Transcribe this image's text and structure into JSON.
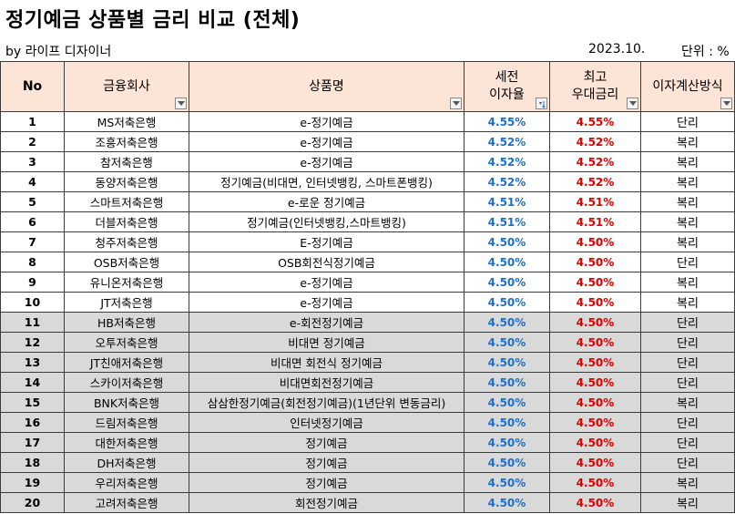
{
  "title": "정기예금 상품별 금리 비교 (전체)",
  "subtitle": {
    "author": "by 라이프 디자이너",
    "date": "2023.10.",
    "unit": "단위 : %"
  },
  "headers": {
    "no": "No",
    "company": "금융회사",
    "product": "상품명",
    "rate_line1": "세전",
    "rate_line2": "이자율",
    "max_line1": "최고",
    "max_line2": "우대금리",
    "calc": "이자계산방식"
  },
  "colors": {
    "header_bg": "#fce4d6",
    "rate_blue": "#1f6fc6",
    "max_red": "#e00000",
    "gray_row": "#d9d9d9"
  },
  "rows": [
    {
      "no": "1",
      "company": "MS저축은행",
      "product": "e-정기예금",
      "rate": "4.55%",
      "max": "4.55%",
      "calc": "단리",
      "gray": false
    },
    {
      "no": "2",
      "company": "조흥저축은행",
      "product": "e-정기예금",
      "rate": "4.52%",
      "max": "4.52%",
      "calc": "복리",
      "gray": false
    },
    {
      "no": "3",
      "company": "참저축은행",
      "product": "e-정기예금",
      "rate": "4.52%",
      "max": "4.52%",
      "calc": "복리",
      "gray": false
    },
    {
      "no": "4",
      "company": "동양저축은행",
      "product": "정기예금(비대면, 인터넷뱅킹, 스마트폰뱅킹)",
      "rate": "4.52%",
      "max": "4.52%",
      "calc": "복리",
      "gray": false
    },
    {
      "no": "5",
      "company": "스마트저축은행",
      "product": "e-로운 정기예금",
      "rate": "4.51%",
      "max": "4.51%",
      "calc": "복리",
      "gray": false
    },
    {
      "no": "6",
      "company": "더블저축은행",
      "product": "정기예금(인터넷뱅킹,스마트뱅킹)",
      "rate": "4.51%",
      "max": "4.51%",
      "calc": "복리",
      "gray": false
    },
    {
      "no": "7",
      "company": "청주저축은행",
      "product": "E-정기예금",
      "rate": "4.50%",
      "max": "4.50%",
      "calc": "복리",
      "gray": false
    },
    {
      "no": "8",
      "company": "OSB저축은행",
      "product": "OSB회전식정기예금",
      "rate": "4.50%",
      "max": "4.50%",
      "calc": "단리",
      "gray": false
    },
    {
      "no": "9",
      "company": "유니온저축은행",
      "product": "e-정기예금",
      "rate": "4.50%",
      "max": "4.50%",
      "calc": "복리",
      "gray": false
    },
    {
      "no": "10",
      "company": "JT저축은행",
      "product": "e-정기예금",
      "rate": "4.50%",
      "max": "4.50%",
      "calc": "복리",
      "gray": false
    },
    {
      "no": "11",
      "company": "HB저축은행",
      "product": "e-회전정기예금",
      "rate": "4.50%",
      "max": "4.50%",
      "calc": "단리",
      "gray": true
    },
    {
      "no": "12",
      "company": "오투저축은행",
      "product": "비대면 정기예금",
      "rate": "4.50%",
      "max": "4.50%",
      "calc": "단리",
      "gray": true
    },
    {
      "no": "13",
      "company": "JT친애저축은행",
      "product": "비대면 회전식 정기예금",
      "rate": "4.50%",
      "max": "4.50%",
      "calc": "단리",
      "gray": true
    },
    {
      "no": "14",
      "company": "스카이저축은행",
      "product": "비대면회전정기예금",
      "rate": "4.50%",
      "max": "4.50%",
      "calc": "단리",
      "gray": true
    },
    {
      "no": "15",
      "company": "BNK저축은행",
      "product": "삼삼한정기예금(회전정기예금)(1년단위 변동금리)",
      "rate": "4.50%",
      "max": "4.50%",
      "calc": "복리",
      "gray": true
    },
    {
      "no": "16",
      "company": "드림저축은행",
      "product": "인터넷정기예금",
      "rate": "4.50%",
      "max": "4.50%",
      "calc": "단리",
      "gray": true
    },
    {
      "no": "17",
      "company": "대한저축은행",
      "product": "정기예금",
      "rate": "4.50%",
      "max": "4.50%",
      "calc": "단리",
      "gray": true
    },
    {
      "no": "18",
      "company": "DH저축은행",
      "product": "정기예금",
      "rate": "4.50%",
      "max": "4.50%",
      "calc": "단리",
      "gray": true
    },
    {
      "no": "19",
      "company": "우리저축은행",
      "product": "정기예금",
      "rate": "4.50%",
      "max": "4.50%",
      "calc": "복리",
      "gray": true
    },
    {
      "no": "20",
      "company": "고려저축은행",
      "product": "회전정기예금",
      "rate": "4.50%",
      "max": "4.50%",
      "calc": "복리",
      "gray": true
    }
  ]
}
